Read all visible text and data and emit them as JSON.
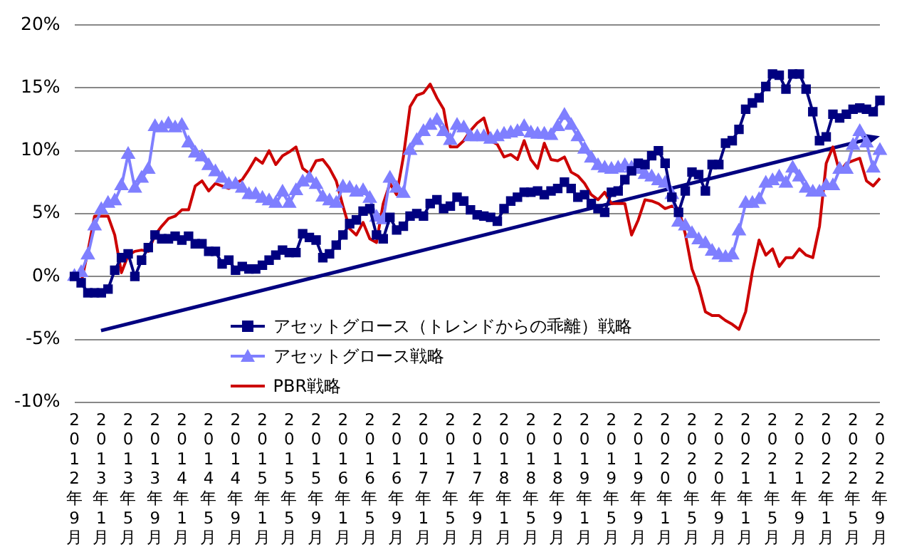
{
  "chart_data": {
    "type": "line",
    "categories": [
      "2012年9月",
      null,
      null,
      null,
      "2013年1月",
      null,
      null,
      null,
      "2013年5月",
      null,
      null,
      null,
      "2013年9月",
      null,
      null,
      null,
      "2014年1月",
      null,
      null,
      null,
      "2014年5月",
      null,
      null,
      null,
      "2014年9月",
      null,
      null,
      null,
      "2015年1月",
      null,
      null,
      null,
      "2015年5月",
      null,
      null,
      null,
      "2015年9月",
      null,
      null,
      null,
      "2016年1月",
      null,
      null,
      null,
      "2016年5月",
      null,
      null,
      null,
      "2016年9月",
      null,
      null,
      null,
      "2017年1月",
      null,
      null,
      null,
      "2017年5月",
      null,
      null,
      null,
      "2017年9月",
      null,
      null,
      null,
      "2018年1月",
      null,
      null,
      null,
      "2018年5月",
      null,
      null,
      null,
      "2018年9月",
      null,
      null,
      null,
      "2019年1月",
      null,
      null,
      null,
      "2019年5月",
      null,
      null,
      null,
      "2019年9月",
      null,
      null,
      null,
      "2020年1月",
      null,
      null,
      null,
      "2020年5月",
      null,
      null,
      null,
      "2020年9月",
      null,
      null,
      null,
      "2021年1月",
      null,
      null,
      null,
      "2021年5月",
      null,
      null,
      null,
      "2021年9月",
      null,
      null,
      null,
      "2022年1月",
      null,
      null,
      null,
      "2022年5月",
      null,
      null,
      null,
      "2022年9月"
    ],
    "series": [
      {
        "name": "アセットグロース（トレンドからの乖離）戦略",
        "color": "#000080",
        "marker": "square",
        "values": [
          0,
          -0.5,
          -1.3,
          -1.3,
          -1.3,
          -1.0,
          0.5,
          1.5,
          1.8,
          0,
          1.3,
          2.3,
          3.3,
          3.0,
          3.0,
          3.2,
          2.9,
          3.2,
          2.6,
          2.6,
          2.0,
          2.0,
          1.0,
          1.3,
          0.5,
          0.8,
          0.6,
          0.6,
          0.9,
          1.3,
          1.7,
          2.1,
          1.9,
          1.9,
          3.4,
          3.1,
          2.9,
          1.5,
          1.8,
          2.5,
          3.3,
          4.2,
          4.5,
          5.2,
          5.4,
          3.3,
          3.0,
          4.7,
          3.7,
          4.0,
          4.8,
          5.0,
          4.8,
          5.8,
          6.1,
          5.4,
          5.6,
          6.3,
          6.0,
          5.3,
          4.9,
          4.8,
          4.7,
          4.4,
          5.4,
          6.0,
          6.3,
          6.7,
          6.7,
          6.8,
          6.5,
          6.8,
          7.0,
          7.5,
          7.0,
          6.3,
          6.5,
          5.8,
          5.4,
          5.1,
          6.7,
          6.8,
          7.7,
          8.4,
          9.0,
          8.9,
          9.6,
          10.0,
          9.0,
          6.3,
          5.1,
          6.8,
          8.3,
          8.1,
          6.8,
          8.9,
          8.9,
          10.6,
          10.8,
          11.7,
          13.3,
          13.8,
          14.2,
          15.1,
          16.1,
          16.0,
          14.9,
          16.1,
          16.1,
          14.9,
          13.1,
          10.8,
          11.1,
          12.9,
          12.6,
          12.9,
          13.3,
          13.4,
          13.3,
          13.1,
          14.0
        ]
      },
      {
        "name": "アセットグロース戦略",
        "color": "#7f7fff",
        "marker": "triangle",
        "values": [
          0,
          0.3,
          1.7,
          4.0,
          5.3,
          5.8,
          6.0,
          7.2,
          9.7,
          7.0,
          7.8,
          8.5,
          11.9,
          11.8,
          12.1,
          11.8,
          12.0,
          10.6,
          9.8,
          9.5,
          8.8,
          8.3,
          7.8,
          7.3,
          7.3,
          7.0,
          6.5,
          6.5,
          6.2,
          6.0,
          5.8,
          6.7,
          5.8,
          6.8,
          7.5,
          7.8,
          7.3,
          6.3,
          6.0,
          5.8,
          7.1,
          7.0,
          6.7,
          6.8,
          6.2,
          4.7,
          4.5,
          7.8,
          7.0,
          6.6,
          10.0,
          10.8,
          11.5,
          12.0,
          12.4,
          11.5,
          10.8,
          12.0,
          11.8,
          11.1,
          11.1,
          11.1,
          10.9,
          11.1,
          11.3,
          11.4,
          11.5,
          11.9,
          11.4,
          11.3,
          11.3,
          11.2,
          11.9,
          12.8,
          12.0,
          11.1,
          10.1,
          9.4,
          8.8,
          8.6,
          8.5,
          8.6,
          8.8,
          8.6,
          8.5,
          8.1,
          7.9,
          7.6,
          7.4,
          6.5,
          4.3,
          4.0,
          3.4,
          2.9,
          2.6,
          2.0,
          1.7,
          1.5,
          1.7,
          3.6,
          5.8,
          5.8,
          6.1,
          7.4,
          7.6,
          7.9,
          7.4,
          8.6,
          7.9,
          7.0,
          6.7,
          6.7,
          7.2,
          7.2,
          8.5,
          8.5,
          10.4,
          11.5,
          10.6,
          8.6,
          10.0
        ]
      },
      {
        "name": "PBR戦略",
        "color": "#cc0000",
        "marker": "none",
        "values": [
          0,
          -0.5,
          2.0,
          4.8,
          4.8,
          4.8,
          3.3,
          0.3,
          1.7,
          2.0,
          2.1,
          2.0,
          3.3,
          4.0,
          4.6,
          4.8,
          5.3,
          5.3,
          7.2,
          7.6,
          6.8,
          7.4,
          7.2,
          7.0,
          7.4,
          7.7,
          8.5,
          9.4,
          9.0,
          10.0,
          8.9,
          9.6,
          9.9,
          10.3,
          8.6,
          8.2,
          9.2,
          9.3,
          8.6,
          7.6,
          5.6,
          3.8,
          3.3,
          4.3,
          3.0,
          2.7,
          5.8,
          7.4,
          6.5,
          9.5,
          13.5,
          14.4,
          14.6,
          15.3,
          14.2,
          13.3,
          10.3,
          10.3,
          10.8,
          11.6,
          12.2,
          12.6,
          10.8,
          10.5,
          9.5,
          9.7,
          9.3,
          10.8,
          9.3,
          8.6,
          10.6,
          9.3,
          9.2,
          9.5,
          8.3,
          8.0,
          7.4,
          6.5,
          6.1,
          6.7,
          5.8,
          5.8,
          5.8,
          3.3,
          4.5,
          6.1,
          6.0,
          5.8,
          5.4,
          5.6,
          5.4,
          3.4,
          0.6,
          -0.8,
          -2.8,
          -3.1,
          -3.1,
          -3.5,
          -3.8,
          -4.2,
          -2.8,
          0.4,
          2.9,
          1.7,
          2.2,
          0.8,
          1.5,
          1.5,
          2.2,
          1.7,
          1.5,
          4.0,
          9.0,
          10.3,
          8.3,
          9.0,
          9.2,
          9.4,
          7.6,
          7.2,
          7.8
        ]
      }
    ],
    "ylim": [
      -10,
      20
    ],
    "yticks": [
      {
        "value": -10,
        "label": "-10%"
      },
      {
        "value": -5,
        "label": "-5%"
      },
      {
        "value": 0,
        "label": "0%"
      },
      {
        "value": 5,
        "label": "5%"
      },
      {
        "value": 10,
        "label": "10%"
      },
      {
        "value": 15,
        "label": "15%"
      },
      {
        "value": 20,
        "label": "20%"
      }
    ],
    "grid": "y",
    "legend": "bottom left"
  }
}
